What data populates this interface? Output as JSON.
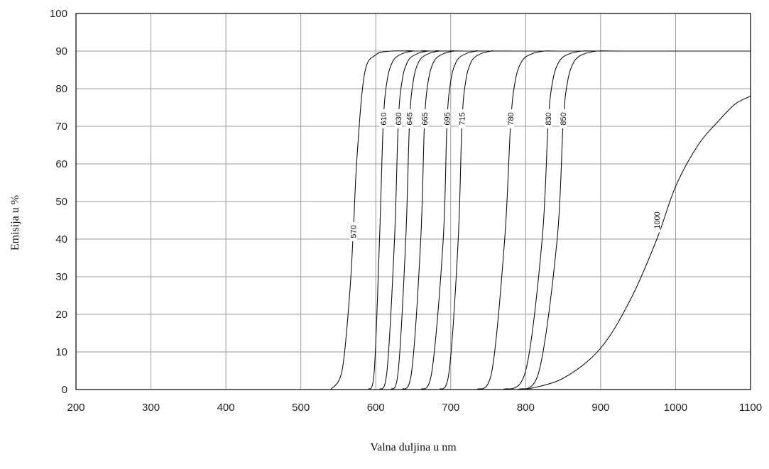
{
  "chart_data": {
    "type": "line",
    "title": "",
    "xlabel": "Valna duljina  u nm",
    "ylabel": "Emisija u  %",
    "xlim": [
      200,
      1100
    ],
    "ylim": [
      0,
      100
    ],
    "xticks": [
      200,
      300,
      400,
      500,
      600,
      700,
      800,
      900,
      1000,
      1100
    ],
    "yticks": [
      0,
      10,
      20,
      30,
      40,
      50,
      60,
      70,
      80,
      90,
      100
    ],
    "grid": true,
    "legend": "none",
    "series": [
      {
        "name": "570",
        "x": [
          540,
          555,
          565,
          570,
          575,
          585,
          600,
          620,
          650,
          700,
          1100
        ],
        "y": [
          0,
          5,
          25,
          42,
          62,
          84,
          89,
          90,
          90,
          90,
          90
        ],
        "label_at": [
          570,
          42
        ]
      },
      {
        "name": "610",
        "x": [
          590,
          598,
          605,
          610,
          615,
          622,
          632,
          650,
          680,
          1100
        ],
        "y": [
          0,
          5,
          40,
          71,
          82,
          87,
          89,
          90,
          90,
          90
        ],
        "label_at": [
          610,
          72
        ]
      },
      {
        "name": "630",
        "x": [
          605,
          615,
          625,
          630,
          635,
          642,
          652,
          670,
          700,
          1100
        ],
        "y": [
          0,
          5,
          40,
          71,
          82,
          87,
          89,
          90,
          90,
          90
        ],
        "label_at": [
          630,
          72
        ]
      },
      {
        "name": "645",
        "x": [
          620,
          630,
          640,
          645,
          650,
          657,
          667,
          685,
          720,
          1100
        ],
        "y": [
          0,
          5,
          40,
          71,
          82,
          87,
          89,
          90,
          90,
          90
        ],
        "label_at": [
          645,
          72
        ]
      },
      {
        "name": "665",
        "x": [
          635,
          648,
          660,
          665,
          670,
          677,
          687,
          705,
          740,
          1100
        ],
        "y": [
          0,
          5,
          40,
          71,
          82,
          87,
          89,
          90,
          90,
          90
        ],
        "label_at": [
          665,
          72
        ]
      },
      {
        "name": "695",
        "x": [
          660,
          675,
          690,
          695,
          700,
          707,
          717,
          735,
          770,
          1100
        ],
        "y": [
          0,
          5,
          40,
          71,
          82,
          87,
          89,
          90,
          90,
          90
        ],
        "label_at": [
          695,
          72
        ]
      },
      {
        "name": "715",
        "x": [
          685,
          698,
          710,
          715,
          720,
          727,
          737,
          755,
          790,
          1100
        ],
        "y": [
          0,
          5,
          40,
          71,
          82,
          87,
          89,
          90,
          90,
          90
        ],
        "label_at": [
          715,
          72
        ]
      },
      {
        "name": "780",
        "x": [
          735,
          755,
          772,
          780,
          786,
          794,
          805,
          825,
          860,
          1100
        ],
        "y": [
          0,
          5,
          40,
          71,
          82,
          87,
          89,
          90,
          90,
          90
        ],
        "label_at": [
          780,
          72
        ]
      },
      {
        "name": "830",
        "x": [
          770,
          800,
          822,
          830,
          836,
          844,
          855,
          875,
          910,
          1100
        ],
        "y": [
          0,
          5,
          40,
          71,
          82,
          87,
          89,
          90,
          90,
          90
        ],
        "label_at": [
          830,
          72
        ]
      },
      {
        "name": "850",
        "x": [
          790,
          818,
          842,
          850,
          856,
          864,
          875,
          895,
          930,
          1100
        ],
        "y": [
          0,
          5,
          40,
          71,
          82,
          87,
          89,
          90,
          90,
          90
        ],
        "label_at": [
          850,
          72
        ]
      },
      {
        "name": "1000",
        "x": [
          800,
          850,
          900,
          940,
          975,
          1000,
          1030,
          1060,
          1080,
          1100
        ],
        "y": [
          0,
          3,
          11,
          24,
          40,
          54,
          65,
          72,
          76,
          78
        ],
        "label_at": [
          975,
          45
        ]
      }
    ]
  }
}
